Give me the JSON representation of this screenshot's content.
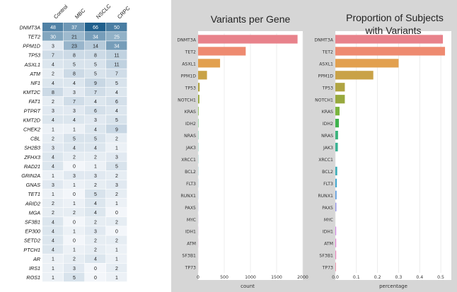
{
  "heatmap": {
    "columns": [
      "Control",
      "MBC",
      "NSCLC",
      "CRPC"
    ],
    "genes": [
      "DNMT3A",
      "TET2",
      "PPM1D",
      "TP53",
      "ASXL1",
      "ATM",
      "NF1",
      "KMT2C",
      "FAT1",
      "PTPRT",
      "KMT2D",
      "CHEK2",
      "CBL",
      "SH2B3",
      "ZFHX3",
      "RAD21",
      "GRIN2A",
      "GNAS",
      "TET1",
      "ARID2",
      "MGA",
      "SF3B1",
      "EP300",
      "SETD2",
      "PTCH1",
      "AR",
      "IRS1",
      "ROS1"
    ],
    "values": [
      [
        48,
        37,
        66,
        50
      ],
      [
        30,
        21,
        34,
        25
      ],
      [
        3,
        23,
        14,
        34
      ],
      [
        7,
        8,
        8,
        11
      ],
      [
        4,
        5,
        5,
        11
      ],
      [
        2,
        8,
        5,
        7
      ],
      [
        4,
        4,
        9,
        5
      ],
      [
        8,
        3,
        7,
        4
      ],
      [
        2,
        7,
        4,
        6
      ],
      [
        3,
        3,
        6,
        4
      ],
      [
        4,
        4,
        3,
        5
      ],
      [
        1,
        1,
        4,
        9
      ],
      [
        2,
        5,
        5,
        2
      ],
      [
        3,
        4,
        4,
        1
      ],
      [
        4,
        2,
        2,
        3
      ],
      [
        4,
        0,
        1,
        5
      ],
      [
        1,
        3,
        3,
        2
      ],
      [
        3,
        1,
        2,
        3
      ],
      [
        1,
        0,
        5,
        2
      ],
      [
        2,
        1,
        4,
        1
      ],
      [
        2,
        2,
        4,
        0
      ],
      [
        4,
        0,
        2,
        2
      ],
      [
        4,
        1,
        3,
        0
      ],
      [
        4,
        0,
        2,
        2
      ],
      [
        4,
        1,
        2,
        1
      ],
      [
        1,
        2,
        4,
        1
      ],
      [
        1,
        3,
        0,
        2
      ],
      [
        1,
        5,
        0,
        1
      ]
    ]
  },
  "chart_data": [
    {
      "type": "bar",
      "orientation": "horizontal",
      "title": "Variants per Gene",
      "xlabel": "count",
      "ylabel": "",
      "xlim": [
        0,
        2000
      ],
      "xticks": [
        "0",
        "500",
        "1000",
        "1500",
        "2000"
      ],
      "xtick_values": [
        0,
        500,
        1000,
        1500,
        2000
      ],
      "categories": [
        "DNMT3A",
        "TET2",
        "ASXL1",
        "PPM1D",
        "TP53",
        "NOTCH1",
        "KRAS",
        "IDH2",
        "NRAS",
        "JAK3",
        "XRCC1",
        "BCL2",
        "FLT3",
        "RUNX1",
        "PAX5",
        "MYC",
        "IDH1",
        "ATM",
        "SF3B1",
        "TP73"
      ],
      "values": [
        1900,
        910,
        420,
        170,
        30,
        25,
        10,
        6,
        5,
        4,
        3,
        3,
        2,
        2,
        2,
        2,
        2,
        2,
        1,
        1
      ]
    },
    {
      "type": "bar",
      "orientation": "horizontal",
      "title": "Proportion of Subjects with Variants",
      "title_lines": [
        "Proportion of Subjects",
        "with Variants"
      ],
      "xlabel": "percentage",
      "ylabel": "",
      "xlim": [
        0,
        0.55
      ],
      "xticks": [
        "0.0",
        "0.1",
        "0.2",
        "0.3",
        "0.4",
        "0.5"
      ],
      "xtick_values": [
        0,
        0.1,
        0.2,
        0.3,
        0.4,
        0.5
      ],
      "categories": [
        "DNMT3A",
        "TET2",
        "ASXL1",
        "PPM1D",
        "TP53",
        "NOTCH1",
        "KRAS",
        "IDH2",
        "NRAS",
        "JAK3",
        "XRCC1",
        "BCL2",
        "FLT3",
        "RUNX1",
        "PAX5",
        "MYC",
        "IDH1",
        "ATM",
        "SF3B1",
        "TP73"
      ],
      "values": [
        0.51,
        0.52,
        0.3,
        0.18,
        0.045,
        0.045,
        0.02,
        0.017,
        0.013,
        0.012,
        0.0,
        0.009,
        0.007,
        0.006,
        0.005,
        0.0,
        0.004,
        0.004,
        0.004,
        0.003
      ]
    }
  ],
  "colors": {
    "bars": [
      "#e8828b",
      "#ee8a70",
      "#e2a04f",
      "#c9a247",
      "#b0a443",
      "#98a93e",
      "#7ab43e",
      "#3fb24d",
      "#3bb37c",
      "#3bb294",
      "#3eb1a5",
      "#3eadb8",
      "#43a7cf",
      "#63a0e0",
      "#9797e6",
      "#bb8ee6",
      "#d387e4",
      "#e383d3",
      "#e985bb",
      "#e888a3"
    ],
    "heat_low": "#f3f6fa",
    "heat_high": "#1f5f8c",
    "panel_bg": "#d6d6d6"
  }
}
